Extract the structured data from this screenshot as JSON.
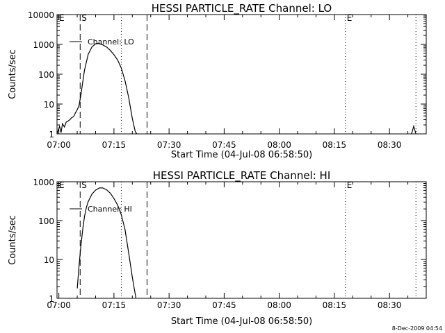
{
  "footer": {
    "timestamp": "8-Dec-2009 04:54"
  },
  "chart_data": [
    {
      "type": "line",
      "title": "HESSI PARTICLE_RATE Channel: LO",
      "xlabel": "Start Time (04-Jul-08 06:58:50)",
      "ylabel": "Counts/sec",
      "yscale": "log",
      "ylim": [
        1,
        10000
      ],
      "xlim_minutes": [
        -0.5,
        100
      ],
      "x_ticks": [
        {
          "minute": 0,
          "label": "07:00"
        },
        {
          "minute": 15,
          "label": "07:15"
        },
        {
          "minute": 30,
          "label": "07:30"
        },
        {
          "minute": 45,
          "label": "07:45"
        },
        {
          "minute": 60,
          "label": "08:00"
        },
        {
          "minute": 75,
          "label": "08:15"
        },
        {
          "minute": 90,
          "label": "08:30"
        }
      ],
      "y_ticks": [
        {
          "value": 1,
          "label": "1"
        },
        {
          "value": 10,
          "label": "10"
        },
        {
          "value": 100,
          "label": "100"
        },
        {
          "value": 1000,
          "label": "1000"
        },
        {
          "value": 10000,
          "label": "10000"
        }
      ],
      "legend": {
        "label": "Channel: LO",
        "position": "top-left"
      },
      "markers": [
        {
          "minute": 5.8,
          "style": "dashed",
          "label": "S"
        },
        {
          "minute": 24.0,
          "style": "dashed",
          "label": ""
        },
        {
          "minute": 17.0,
          "style": "dotted",
          "label": ""
        },
        {
          "minute": 78.0,
          "style": "dotted",
          "label": "E"
        },
        {
          "minute": 97.2,
          "style": "dotted",
          "label": ""
        },
        {
          "minute": -0.3,
          "style": "label",
          "label": "E"
        }
      ],
      "series": [
        {
          "name": "Channel: LO",
          "x": [
            -0.5,
            0.2,
            0.6,
            1.0,
            1.5,
            2.0,
            2.5,
            3.0,
            3.5,
            4.0,
            4.5,
            5.0,
            5.5,
            6.0,
            6.5,
            7.0,
            8.0,
            9.0,
            10.0,
            10.5,
            11.0,
            12.0,
            13.0,
            14.0,
            15.0,
            16.0,
            17.0,
            18.0,
            19.0,
            20.0,
            20.8,
            21.2
          ],
          "y": [
            1.0,
            1.8,
            1.1,
            2.2,
            1.7,
            2.5,
            2.7,
            3.0,
            3.5,
            3.8,
            5.0,
            6.5,
            9.0,
            20,
            55,
            140,
            470,
            820,
            1050,
            1080,
            1060,
            960,
            820,
            630,
            450,
            300,
            160,
            62,
            17,
            3.3,
            1.2,
            1.0
          ]
        },
        {
          "name": "",
          "x": [
            96.0,
            96.6,
            97.2
          ],
          "y": [
            1.0,
            1.8,
            1.0
          ]
        }
      ]
    },
    {
      "type": "line",
      "title": "HESSI PARTICLE_RATE Channel: HI",
      "xlabel": "Start Time (04-Jul-08 06:58:50)",
      "ylabel": "Counts/sec",
      "yscale": "log",
      "ylim": [
        1,
        1000
      ],
      "xlim_minutes": [
        -0.5,
        100
      ],
      "x_ticks": [
        {
          "minute": 0,
          "label": "07:00"
        },
        {
          "minute": 15,
          "label": "07:15"
        },
        {
          "minute": 30,
          "label": "07:30"
        },
        {
          "minute": 45,
          "label": "07:45"
        },
        {
          "minute": 60,
          "label": "08:00"
        },
        {
          "minute": 75,
          "label": "08:15"
        },
        {
          "minute": 90,
          "label": "08:30"
        }
      ],
      "y_ticks": [
        {
          "value": 1,
          "label": "1"
        },
        {
          "value": 10,
          "label": "10"
        },
        {
          "value": 100,
          "label": "100"
        },
        {
          "value": 1000,
          "label": "1000"
        }
      ],
      "legend": {
        "label": "Channel: HI",
        "position": "top-left"
      },
      "markers": [
        {
          "minute": 5.8,
          "style": "dashed",
          "label": "S"
        },
        {
          "minute": 24.0,
          "style": "dashed",
          "label": ""
        },
        {
          "minute": 17.0,
          "style": "dotted",
          "label": ""
        },
        {
          "minute": 78.0,
          "style": "dotted",
          "label": "E"
        },
        {
          "minute": 97.2,
          "style": "dotted",
          "label": ""
        },
        {
          "minute": -0.3,
          "style": "label",
          "label": "E"
        }
      ],
      "series": [
        {
          "name": "Channel: HI",
          "x": [
            5.0,
            5.5,
            6.0,
            6.5,
            7.0,
            7.5,
            8.0,
            9.0,
            10.0,
            11.0,
            11.5,
            12.0,
            13.0,
            14.0,
            15.0,
            16.0,
            17.0,
            18.0,
            19.0,
            20.0,
            20.5,
            21.0
          ],
          "y": [
            1.8,
            7,
            22,
            60,
            130,
            220,
            310,
            480,
            610,
            690,
            700,
            690,
            620,
            510,
            370,
            250,
            140,
            60,
            15,
            3.5,
            1.8,
            1.0
          ]
        }
      ]
    }
  ]
}
